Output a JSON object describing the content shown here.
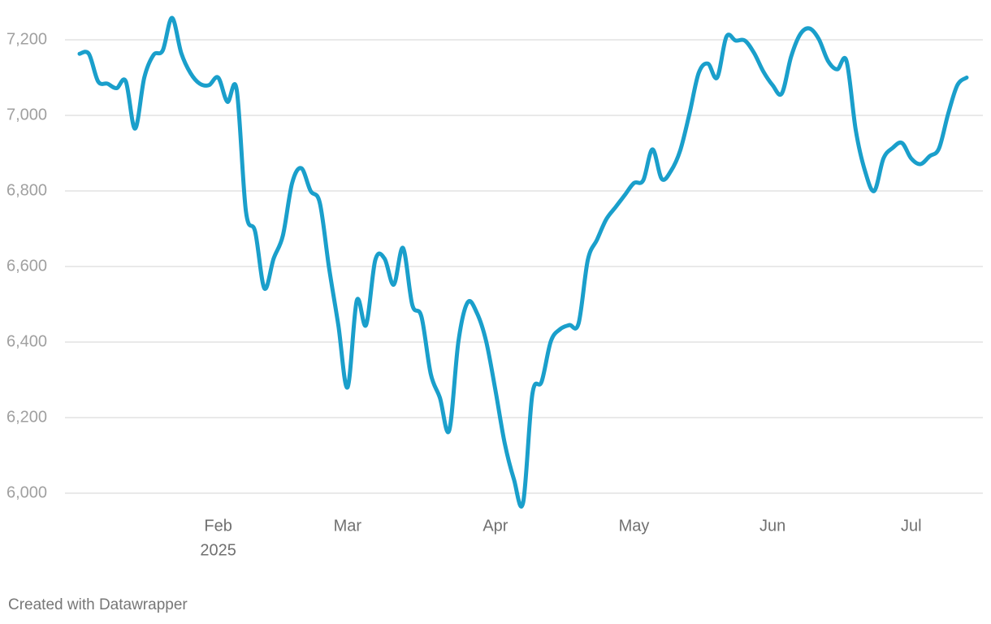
{
  "chart_data": {
    "type": "line",
    "categories": [
      null,
      null,
      null,
      null,
      null,
      null,
      null,
      null,
      null,
      null,
      null,
      null,
      null,
      null,
      null,
      "Feb",
      null,
      null,
      null,
      null,
      null,
      null,
      null,
      null,
      null,
      null,
      null,
      null,
      null,
      "Mar",
      null,
      null,
      null,
      null,
      null,
      null,
      null,
      null,
      null,
      null,
      null,
      null,
      null,
      null,
      null,
      "Apr",
      null,
      null,
      null,
      null,
      null,
      null,
      null,
      null,
      null,
      null,
      null,
      null,
      null,
      null,
      "May",
      null,
      null,
      null,
      null,
      null,
      null,
      null,
      null,
      null,
      null,
      null,
      null,
      null,
      null,
      "Jun",
      null,
      null,
      null,
      null,
      null,
      null,
      null,
      null,
      null,
      null,
      null,
      null,
      null,
      null,
      "Jul",
      null,
      null,
      null,
      null,
      null,
      null
    ],
    "year_label": "2025",
    "values": [
      7163,
      7163,
      7090,
      7084,
      7072,
      7090,
      6965,
      7100,
      7160,
      7172,
      7258,
      7165,
      7112,
      7084,
      7080,
      7100,
      7036,
      7068,
      6746,
      6692,
      6542,
      6621,
      6682,
      6821,
      6860,
      6800,
      6768,
      6596,
      6445,
      6280,
      6510,
      6445,
      6617,
      6621,
      6552,
      6649,
      6499,
      6467,
      6316,
      6252,
      6166,
      6402,
      6505,
      6477,
      6402,
      6273,
      6133,
      6037,
      5975,
      6262,
      6295,
      6402,
      6434,
      6445,
      6449,
      6617,
      6671,
      6725,
      6757,
      6789,
      6821,
      6828,
      6910,
      6832,
      6853,
      6907,
      7004,
      7112,
      7137,
      7100,
      7208,
      7198,
      7198,
      7165,
      7116,
      7080,
      7058,
      7155,
      7215,
      7230,
      7202,
      7144,
      7122,
      7144,
      6961,
      6853,
      6800,
      6886,
      6914,
      6927,
      6886,
      6871,
      6892,
      6912,
      7004,
      7080,
      7100
    ],
    "color": "#1a9fcb",
    "ylim": [
      6000,
      7200
    ],
    "yticks": [
      {
        "value": 6000,
        "label": "6,000"
      },
      {
        "value": 6200,
        "label": "6,200"
      },
      {
        "value": 6400,
        "label": "6,400"
      },
      {
        "value": 6600,
        "label": "6,600"
      },
      {
        "value": 6800,
        "label": "6,800"
      },
      {
        "value": 7000,
        "label": "7,000"
      },
      {
        "value": 7200,
        "label": "7,200"
      }
    ],
    "grid": true,
    "credit": "Created with Datawrapper"
  }
}
